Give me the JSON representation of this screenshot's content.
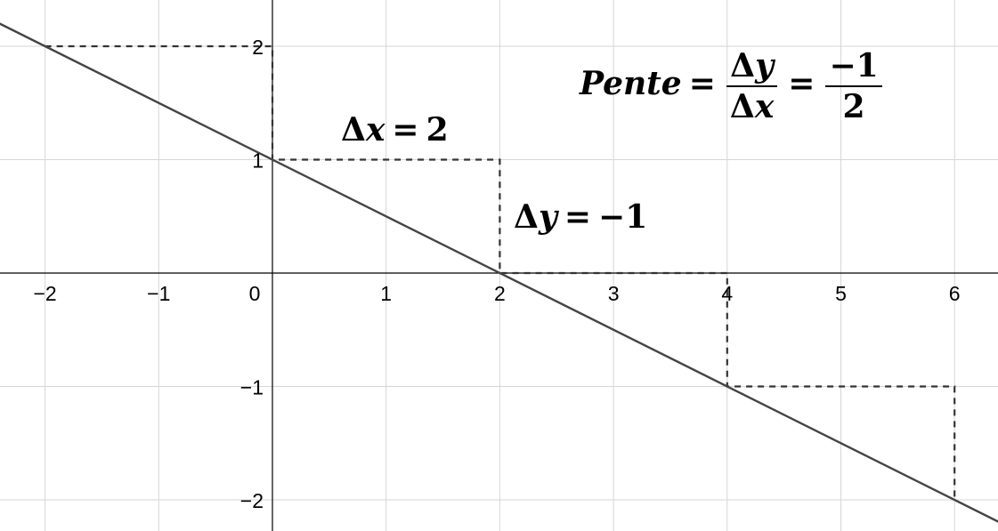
{
  "chart_data": {
    "type": "line",
    "x_ticks": [
      "−2",
      "−1",
      "0",
      "1",
      "2",
      "3",
      "4",
      "5",
      "6"
    ],
    "y_ticks": [
      "2",
      "1",
      "−1",
      "−2"
    ],
    "xlim": [
      -2.4,
      6.4
    ],
    "ylim": [
      -2.3,
      2.4
    ],
    "grid": true,
    "series": [
      {
        "name": "line",
        "points": [
          [
            -2.4,
            2.2
          ],
          [
            6.4,
            -2.2
          ]
        ]
      }
    ],
    "dashed_steps": [
      [
        [
          -2,
          2
        ],
        [
          0,
          2
        ],
        [
          0,
          1
        ],
        [
          2,
          1
        ],
        [
          2,
          0
        ],
        [
          4,
          0
        ],
        [
          4,
          -1
        ],
        [
          6,
          -1
        ],
        [
          6,
          -2
        ]
      ]
    ],
    "annotations": {
      "dx_label": {
        "delta": "Δ",
        "var": "x",
        "eq": "=",
        "value": "2"
      },
      "dy_label": {
        "delta": "Δ",
        "var": "y",
        "eq": "=",
        "value": "−1"
      },
      "slope_formula": {
        "word": "Pente",
        "eq1": "=",
        "num_delta": "Δ",
        "num_var": "y",
        "den_delta": "Δ",
        "den_var": "x",
        "eq2": "=",
        "num_value": "−1",
        "den_value": "2"
      }
    }
  }
}
